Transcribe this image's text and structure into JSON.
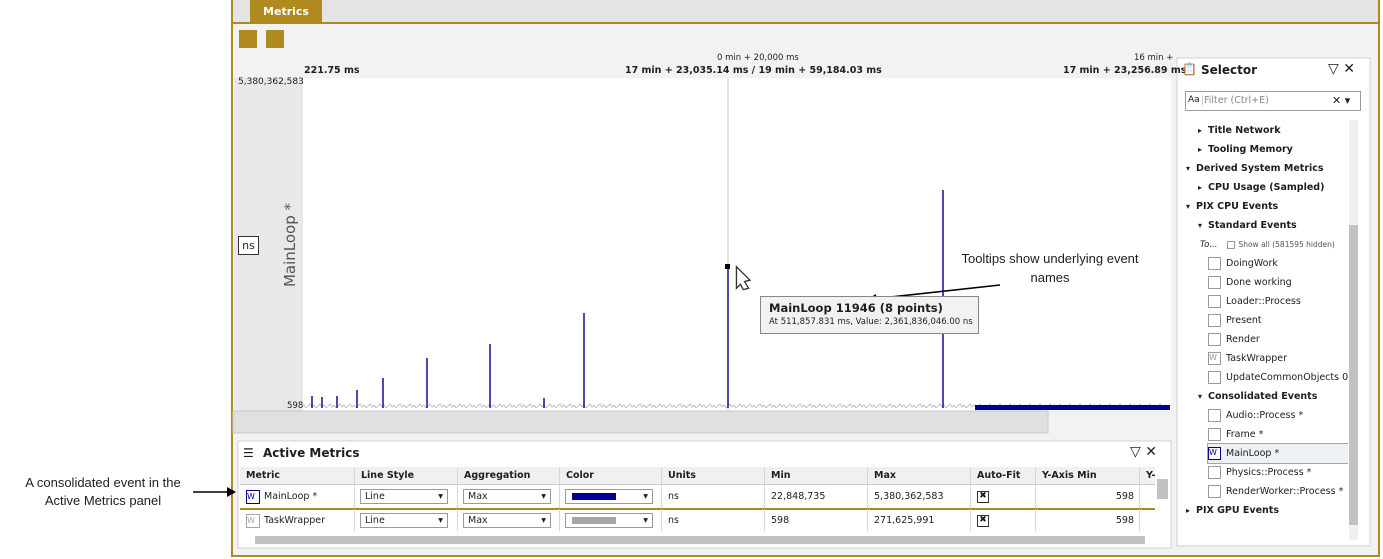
{
  "annotations": {
    "left": "A consolidated event in the Active Metrics panel",
    "tooltip_hint": "Tooltips show underlying event names"
  },
  "tab": "Metrics",
  "plot": {
    "time_top_left": "0 min + 20,000 ms",
    "time_top_right": "16 min +",
    "time_left": "221.75 ms",
    "time_center": "17 min + 23,035.14 ms / 19 min + 59,184.03 ms",
    "time_right": "17 min + 23,256.89 ms",
    "y_max": "5,380,362,583",
    "y_min": "598",
    "y_label": "MainLoop *",
    "unit": "ns",
    "line_color": "#00008b"
  },
  "tooltip": {
    "title": "MainLoop 11946 (8 points)",
    "detail": "At 511,857.831 ms, Value: 2,361,836,046.00 ns"
  },
  "active_metrics": {
    "title": "Active Metrics",
    "columns": [
      "Metric",
      "Line Style",
      "Aggregation",
      "Color",
      "Units",
      "Min",
      "Max",
      "Auto-Fit",
      "Y-Axis Min",
      "Y-"
    ],
    "rows": [
      {
        "metric": "MainLoop *",
        "line_style": "Line",
        "aggregation": "Max",
        "color": "#00008b",
        "units": "ns",
        "min": "22,848,735",
        "max": "5,380,362,583",
        "auto_fit": true,
        "y_axis_min": "598"
      },
      {
        "metric": "TaskWrapper",
        "line_style": "Line",
        "aggregation": "Max",
        "color": "#a6a6a6",
        "units": "ns",
        "min": "598",
        "max": "271,625,991",
        "auto_fit": true,
        "y_axis_min": "598"
      }
    ]
  },
  "selector": {
    "title": "Selector",
    "filter_case": "Aa",
    "filter_placeholder": "Filter (Ctrl+E)",
    "items": [
      {
        "label": "Title Network",
        "level": 1,
        "kind": "closed"
      },
      {
        "label": "Tooling Memory",
        "level": 1,
        "kind": "closed"
      },
      {
        "label": "Derived System Metrics",
        "level": 0,
        "kind": "open"
      },
      {
        "label": "CPU Usage (Sampled)",
        "level": 1,
        "kind": "closed"
      },
      {
        "label": "PIX CPU Events",
        "level": 0,
        "kind": "open"
      },
      {
        "label": "Standard Events",
        "level": 1,
        "kind": "open"
      },
      {
        "label": "To...",
        "level": 1,
        "kind": "filter",
        "extra": "Show all (581595 hidden)"
      },
      {
        "label": "DoingWork",
        "level": 2,
        "kind": "check"
      },
      {
        "label": "Done working",
        "level": 2,
        "kind": "check"
      },
      {
        "label": "Loader::Process",
        "level": 2,
        "kind": "check"
      },
      {
        "label": "Present",
        "level": 2,
        "kind": "check"
      },
      {
        "label": "Render",
        "level": 2,
        "kind": "check"
      },
      {
        "label": "TaskWrapper",
        "level": 2,
        "kind": "active-gray"
      },
      {
        "label": "UpdateCommonObjects 0",
        "level": 2,
        "kind": "check"
      },
      {
        "label": "Consolidated Events",
        "level": 1,
        "kind": "open"
      },
      {
        "label": "Audio::Process   *",
        "level": 2,
        "kind": "check"
      },
      {
        "label": "Frame *",
        "level": 2,
        "kind": "check"
      },
      {
        "label": "MainLoop *",
        "level": 2,
        "kind": "active-blue"
      },
      {
        "label": "Physics::Process *",
        "level": 2,
        "kind": "check"
      },
      {
        "label": "RenderWorker::Process *",
        "level": 2,
        "kind": "check"
      },
      {
        "label": "PIX GPU Events",
        "level": 0,
        "kind": "closed"
      }
    ]
  }
}
